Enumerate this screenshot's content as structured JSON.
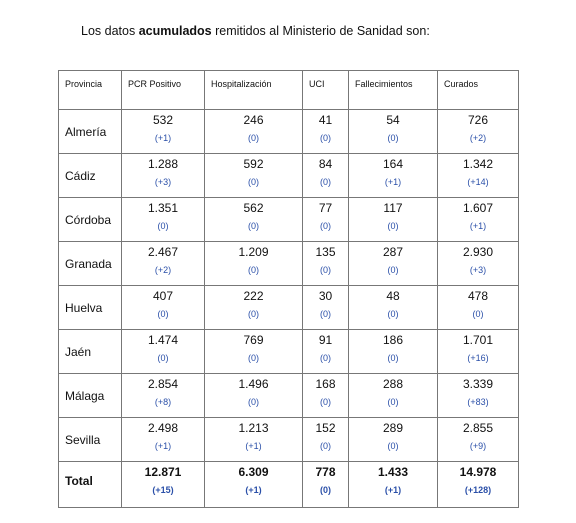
{
  "intro": {
    "before": "Los datos ",
    "bold": "acumulados",
    "after": " remitidos al Ministerio de Sanidad son:"
  },
  "headers": [
    "Provincia",
    "PCR Positivo",
    "Hospitalización",
    "UCI",
    "Fallecimientos",
    "Curados"
  ],
  "rows": [
    {
      "provincia": "Almería",
      "values": [
        "532",
        "246",
        "41",
        "54",
        "726"
      ],
      "deltas": [
        "(+1)",
        "(0)",
        "(0)",
        "(0)",
        "(+2)"
      ]
    },
    {
      "provincia": "Cádiz",
      "values": [
        "1.288",
        "592",
        "84",
        "164",
        "1.342"
      ],
      "deltas": [
        "(+3)",
        "(0)",
        "(0)",
        "(+1)",
        "(+14)"
      ]
    },
    {
      "provincia": "Córdoba",
      "values": [
        "1.351",
        "562",
        "77",
        "117",
        "1.607"
      ],
      "deltas": [
        "(0)",
        "(0)",
        "(0)",
        "(0)",
        "(+1)"
      ]
    },
    {
      "provincia": "Granada",
      "values": [
        "2.467",
        "1.209",
        "135",
        "287",
        "2.930"
      ],
      "deltas": [
        "(+2)",
        "(0)",
        "(0)",
        "(0)",
        "(+3)"
      ]
    },
    {
      "provincia": "Huelva",
      "values": [
        "407",
        "222",
        "30",
        "48",
        "478"
      ],
      "deltas": [
        "(0)",
        "(0)",
        "(0)",
        "(0)",
        "(0)"
      ]
    },
    {
      "provincia": "Jaén",
      "values": [
        "1.474",
        "769",
        "91",
        "186",
        "1.701"
      ],
      "deltas": [
        "(0)",
        "(0)",
        "(0)",
        "(0)",
        "(+16)"
      ]
    },
    {
      "provincia": "Málaga",
      "values": [
        "2.854",
        "1.496",
        "168",
        "288",
        "3.339"
      ],
      "deltas": [
        "(+8)",
        "(0)",
        "(0)",
        "(0)",
        "(+83)"
      ]
    },
    {
      "provincia": "Sevilla",
      "values": [
        "2.498",
        "1.213",
        "152",
        "289",
        "2.855"
      ],
      "deltas": [
        "(+1)",
        "(+1)",
        "(0)",
        "(0)",
        "(+9)"
      ]
    }
  ],
  "total": {
    "provincia": "Total",
    "values": [
      "12.871",
      "6.309",
      "778",
      "1.433",
      "14.978"
    ],
    "deltas": [
      "(+15)",
      "(+1)",
      "(0)",
      "(+1)",
      "(+128)"
    ]
  },
  "colors": {
    "delta": "#2a4fa8",
    "border": "#777777"
  }
}
